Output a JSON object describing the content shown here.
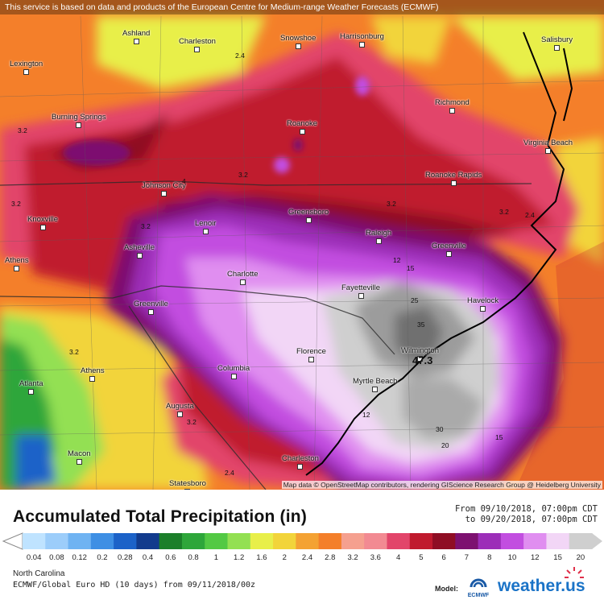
{
  "banner": "This service is based on data and products of the European Centre for Medium-range Weather Forecasts (ECMWF)",
  "map_credit": "Map data © OpenStreetMap contributors, rendering GIScience Research Group @ Heidelberg University",
  "cities": [
    {
      "name": "Ashland"
    },
    {
      "name": "Charleston"
    },
    {
      "name": "Snowshoe"
    },
    {
      "name": "Harrisonburg"
    },
    {
      "name": "Salisbury"
    },
    {
      "name": "Lexington"
    },
    {
      "name": "Richmond"
    },
    {
      "name": "Burning Springs"
    },
    {
      "name": "Roanoke"
    },
    {
      "name": "Virginia Beach"
    },
    {
      "name": "Johnson City"
    },
    {
      "name": "Roanoke Rapids"
    },
    {
      "name": "Knoxville"
    },
    {
      "name": "Lenoir"
    },
    {
      "name": "Greensboro"
    },
    {
      "name": "Raleigh"
    },
    {
      "name": "Athens"
    },
    {
      "name": "Asheville"
    },
    {
      "name": "Greenville"
    },
    {
      "name": "Charlotte"
    },
    {
      "name": "Fayetteville"
    },
    {
      "name": "Greenville"
    },
    {
      "name": "Havelock"
    },
    {
      "name": "Florence"
    },
    {
      "name": "Wilmington"
    },
    {
      "name": "Athens"
    },
    {
      "name": "Columbia"
    },
    {
      "name": "Myrtle Beach"
    },
    {
      "name": "Atlanta"
    },
    {
      "name": "Augusta"
    },
    {
      "name": "Macon"
    },
    {
      "name": "Charleston"
    },
    {
      "name": "Statesboro"
    }
  ],
  "contour_labels": [
    "2.4",
    "3.2",
    "3.2",
    "4",
    "3.2",
    "3.2",
    "2.4",
    "3.2",
    "12",
    "15",
    "25",
    "35",
    "15",
    "20",
    "30",
    "12",
    "3.2",
    "2.4",
    "3.2",
    "3.2"
  ],
  "max_value": "47.3",
  "legend": {
    "title": "Accumulated Total Precipitation (in)",
    "period_from": "From 09/10/2018, 07:00pm CDT",
    "period_to": "to 09/20/2018, 07:00pm CDT",
    "values": [
      "0.04",
      "0.08",
      "0.12",
      "0.2",
      "0.28",
      "0.4",
      "0.6",
      "0.8",
      "1",
      "1.2",
      "1.6",
      "2",
      "2.4",
      "2.8",
      "3.2",
      "3.6",
      "4",
      "5",
      "6",
      "7",
      "8",
      "10",
      "12",
      "15",
      "20"
    ],
    "colors": [
      "#bfe3ff",
      "#9ccdfa",
      "#6fb3f2",
      "#3e8fe4",
      "#1c62c8",
      "#123b8d",
      "#1c7f2a",
      "#2ea63a",
      "#53c944",
      "#93e052",
      "#e8ef4a",
      "#f2d43a",
      "#f4a233",
      "#f47f2a",
      "#f5a08f",
      "#f28a92",
      "#e2456a",
      "#c01a2e",
      "#8f0e24",
      "#7d1170",
      "#9c2eb8",
      "#c24ee0",
      "#e08ef0",
      "#f2d6f6",
      "#cfcfcf"
    ]
  },
  "footer": {
    "region": "North Carolina",
    "model_line": "ECMWF/Global Euro HD (10 days) from 09/11/2018/00z",
    "model_label": "Model:",
    "ecmwf": "ECMWF",
    "brand": "weather.",
    "brand_suffix": "us"
  }
}
